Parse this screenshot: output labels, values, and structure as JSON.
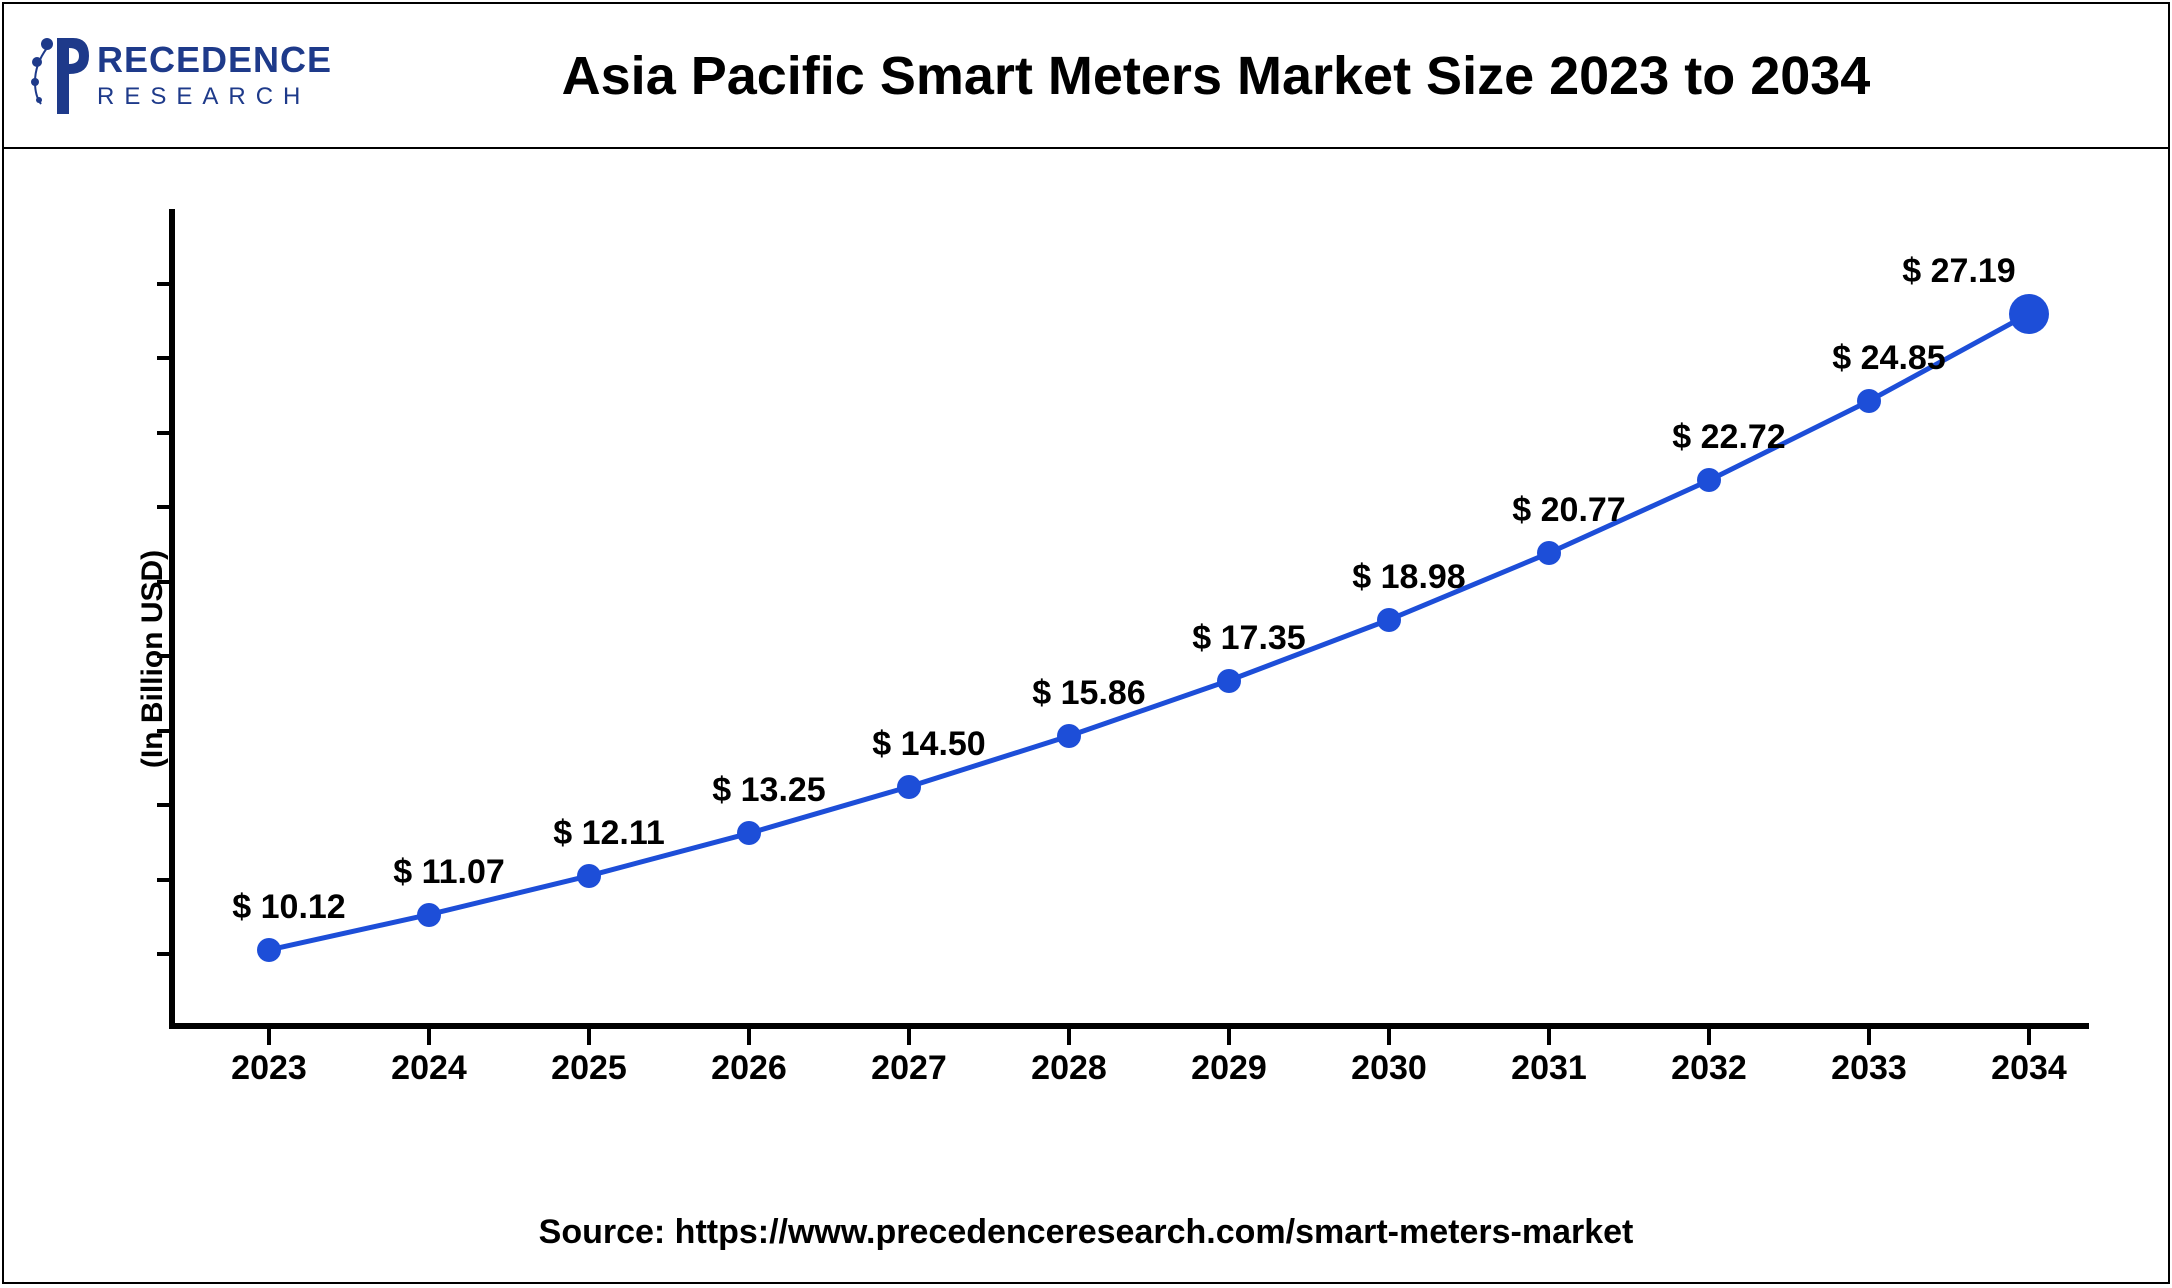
{
  "logo": {
    "main": "PRECEDENCE",
    "sub": "R E S E A R C H",
    "brand_color": "#1e3a8a"
  },
  "chart": {
    "type": "line",
    "title": "Asia Pacific Smart Meters Market Size 2023 to 2034",
    "y_label": "(In Billion USD)",
    "source": "Source:  https://www.precedenceresearch.com/smart-meters-market",
    "line_color": "#1d4ed8",
    "line_width": 5,
    "marker_color": "#1d4ed8",
    "marker_radius": 12,
    "last_marker_radius": 20,
    "background_color": "#ffffff",
    "axis_color": "#000000",
    "label_fontsize": 34,
    "title_fontsize": 54,
    "ylim": [
      8,
      30
    ],
    "y_ticks": [
      10,
      12,
      14,
      16,
      18,
      20,
      22,
      24,
      26,
      28
    ],
    "categories": [
      "2023",
      "2024",
      "2025",
      "2026",
      "2027",
      "2028",
      "2029",
      "2030",
      "2031",
      "2032",
      "2033",
      "2034"
    ],
    "values": [
      10.12,
      11.07,
      12.11,
      13.25,
      14.5,
      15.86,
      17.35,
      18.98,
      20.77,
      22.72,
      24.85,
      27.19
    ],
    "value_labels": [
      "$ 10.12",
      "$ 11.07",
      "$ 12.11",
      "$ 13.25",
      "$ 14.50",
      "$ 15.86",
      "$ 17.35",
      "$ 18.98",
      "$ 20.77",
      "$ 22.72",
      "$ 24.85",
      "$ 27.19"
    ]
  }
}
